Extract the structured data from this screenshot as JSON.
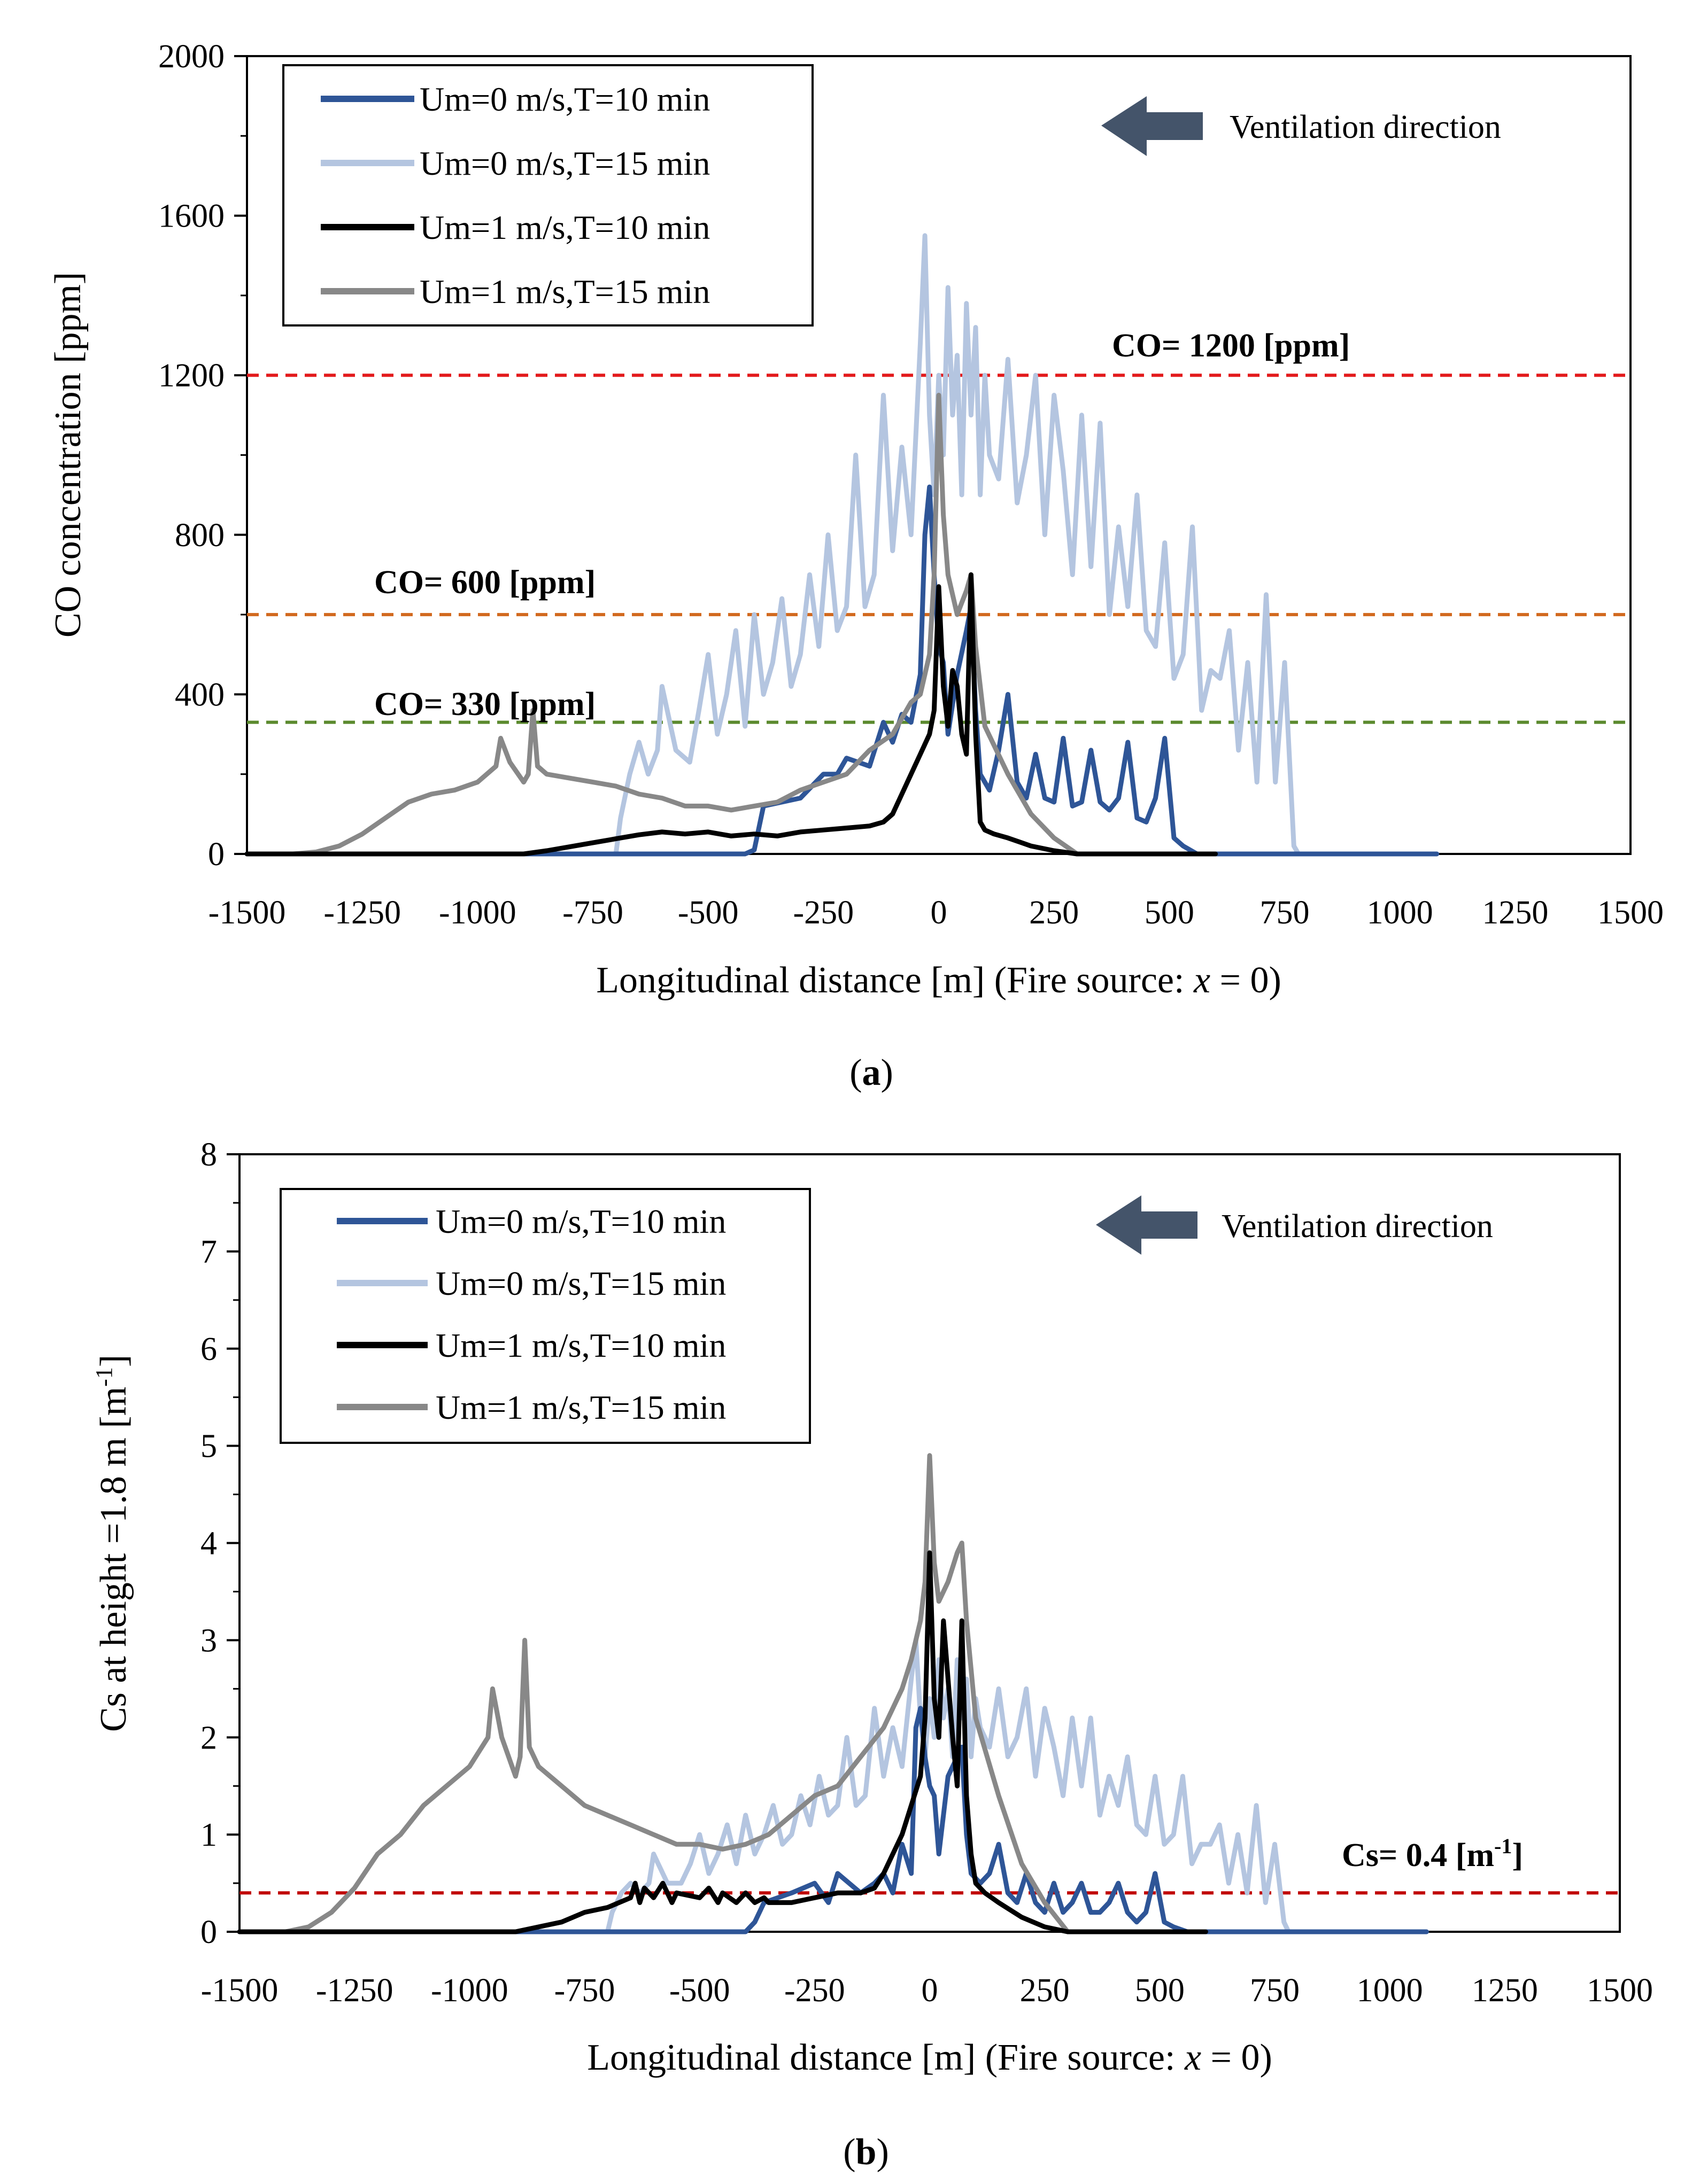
{
  "chart_data": [
    {
      "type": "line",
      "panel_caption": "a",
      "xlabel_main": "Longitudinal distance [m] (Fire source: ",
      "xlabel_var": "x",
      "xlabel_tail": " = 0)",
      "ylabel": "CO concentration [ppm]",
      "xlim": [
        -1500,
        1500
      ],
      "ylim": [
        0,
        2000
      ],
      "x_ticks": [
        "-1500",
        "-1250",
        "-1000",
        "-750",
        "-500",
        "-250",
        "0",
        "250",
        "500",
        "750",
        "1000",
        "1250",
        "1500"
      ],
      "y_ticks": [
        "0",
        "400",
        "800",
        "1200",
        "1600",
        "2000"
      ],
      "annotation": "Ventilation direction",
      "legend_position": "top-left",
      "series": [
        {
          "name": "Um=0 m/s,T=10 min",
          "color": "#2e5597",
          "x": [
            -1500,
            -700,
            -650,
            -600,
            -500,
            -420,
            -400,
            -380,
            -300,
            -250,
            -220,
            -200,
            -150,
            -120,
            -100,
            -80,
            -60,
            -40,
            -30,
            -20,
            -10,
            0,
            10,
            20,
            40,
            60,
            70,
            80,
            90,
            110,
            130,
            150,
            170,
            190,
            210,
            230,
            250,
            270,
            290,
            310,
            330,
            350,
            370,
            390,
            410,
            430,
            450,
            470,
            490,
            510,
            530,
            560,
            600,
            1080
          ],
          "y": [
            0,
            0,
            0,
            0,
            0,
            0,
            10,
            120,
            140,
            200,
            200,
            240,
            220,
            330,
            280,
            350,
            330,
            450,
            800,
            920,
            700,
            520,
            480,
            300,
            450,
            560,
            620,
            360,
            200,
            160,
            260,
            400,
            180,
            140,
            250,
            140,
            130,
            290,
            120,
            130,
            260,
            130,
            110,
            140,
            280,
            90,
            80,
            140,
            290,
            40,
            20,
            0,
            0,
            0
          ]
        },
        {
          "name": "Um=0 m/s,T=15 min",
          "color": "#b4c5e0",
          "x": [
            -700,
            -690,
            -670,
            -650,
            -630,
            -610,
            -600,
            -570,
            -540,
            -520,
            -500,
            -480,
            -460,
            -440,
            -420,
            -400,
            -380,
            -360,
            -340,
            -320,
            -300,
            -280,
            -260,
            -240,
            -220,
            -200,
            -180,
            -160,
            -140,
            -120,
            -100,
            -80,
            -60,
            -40,
            -30,
            -20,
            -10,
            0,
            10,
            20,
            30,
            40,
            50,
            60,
            70,
            80,
            90,
            100,
            110,
            130,
            150,
            170,
            190,
            210,
            230,
            250,
            270,
            290,
            310,
            330,
            350,
            370,
            390,
            410,
            430,
            450,
            470,
            490,
            510,
            530,
            550,
            570,
            590,
            610,
            630,
            650,
            670,
            690,
            710,
            730,
            750,
            770,
            780
          ],
          "y": [
            0,
            90,
            200,
            280,
            200,
            260,
            420,
            260,
            230,
            360,
            500,
            300,
            400,
            560,
            320,
            600,
            400,
            480,
            640,
            420,
            500,
            700,
            520,
            800,
            560,
            620,
            1000,
            620,
            700,
            1150,
            760,
            1020,
            800,
            1280,
            1550,
            1100,
            900,
            1200,
            1000,
            1420,
            1100,
            1250,
            900,
            1380,
            1100,
            1320,
            900,
            1200,
            1000,
            940,
            1240,
            880,
            1000,
            1200,
            800,
            1150,
            960,
            700,
            1100,
            720,
            1080,
            600,
            820,
            620,
            900,
            560,
            520,
            780,
            440,
            500,
            820,
            360,
            460,
            440,
            560,
            260,
            480,
            180,
            650,
            180,
            480,
            20,
            0
          ]
        },
        {
          "name": "Um=1 m/s,T=10 min",
          "color": "#000000",
          "x": [
            -1500,
            -900,
            -850,
            -800,
            -750,
            -700,
            -650,
            -600,
            -550,
            -500,
            -450,
            -400,
            -350,
            -300,
            -250,
            -200,
            -150,
            -120,
            -100,
            -80,
            -60,
            -40,
            -20,
            -10,
            0,
            10,
            20,
            30,
            40,
            50,
            60,
            70,
            80,
            90,
            100,
            120,
            150,
            200,
            250,
            300,
            600
          ],
          "y": [
            0,
            0,
            8,
            18,
            28,
            38,
            48,
            55,
            50,
            55,
            45,
            50,
            45,
            55,
            60,
            65,
            70,
            80,
            100,
            150,
            200,
            250,
            300,
            360,
            670,
            420,
            320,
            460,
            420,
            300,
            250,
            700,
            300,
            80,
            60,
            50,
            40,
            20,
            8,
            0,
            0
          ]
        },
        {
          "name": "Um=1 m/s,T=15 min",
          "color": "#888888",
          "x": [
            -1400,
            -1350,
            -1300,
            -1250,
            -1200,
            -1150,
            -1100,
            -1050,
            -1000,
            -960,
            -950,
            -930,
            -900,
            -890,
            -880,
            -870,
            -850,
            -800,
            -750,
            -700,
            -650,
            -600,
            -550,
            -500,
            -450,
            -400,
            -350,
            -300,
            -250,
            -200,
            -150,
            -100,
            -60,
            -40,
            -20,
            -10,
            0,
            10,
            20,
            40,
            60,
            70,
            80,
            100,
            150,
            200,
            250,
            300
          ],
          "y": [
            0,
            5,
            20,
            50,
            90,
            130,
            150,
            160,
            180,
            220,
            290,
            230,
            180,
            200,
            360,
            220,
            200,
            190,
            180,
            170,
            150,
            140,
            120,
            120,
            110,
            120,
            130,
            160,
            180,
            200,
            260,
            300,
            380,
            400,
            500,
            700,
            1150,
            850,
            700,
            600,
            660,
            700,
            520,
            320,
            200,
            100,
            40,
            0
          ]
        }
      ],
      "thresholds": [
        {
          "label": "CO= 1200 [ppm]",
          "value": 1200,
          "color": "#e31a1c"
        },
        {
          "label": "CO= 600 [ppm]",
          "value": 600,
          "color": "#d2691e"
        },
        {
          "label": "CO= 330 [ppm]",
          "value": 330,
          "color": "#5b8a2e"
        }
      ]
    },
    {
      "type": "line",
      "panel_caption": "b",
      "xlabel_main": "Longitudinal distance [m] (Fire source: ",
      "xlabel_var": "x",
      "xlabel_tail": " = 0)",
      "ylabel_main": "Cs at height =1.8 m [m",
      "ylabel_sup": "-1",
      "ylabel_tail": "]",
      "xlim": [
        -1500,
        1500
      ],
      "ylim": [
        0,
        8
      ],
      "x_ticks": [
        "-1500",
        "-1250",
        "-1000",
        "-750",
        "-500",
        "-250",
        "0",
        "250",
        "500",
        "750",
        "1000",
        "1250",
        "1500"
      ],
      "y_ticks": [
        "0",
        "1",
        "2",
        "3",
        "4",
        "5",
        "6",
        "7",
        "8"
      ],
      "annotation": "Ventilation direction",
      "legend_position": "top-left",
      "series": [
        {
          "name": "Um=0 m/s,T=10 min",
          "color": "#2e5597",
          "x": [
            -1500,
            -700,
            -500,
            -400,
            -380,
            -360,
            -300,
            -250,
            -220,
            -200,
            -150,
            -120,
            -100,
            -80,
            -60,
            -40,
            -30,
            -20,
            -10,
            0,
            10,
            20,
            40,
            60,
            70,
            80,
            90,
            110,
            130,
            150,
            170,
            190,
            210,
            230,
            250,
            270,
            290,
            310,
            330,
            350,
            370,
            390,
            410,
            430,
            450,
            470,
            490,
            510,
            530,
            560,
            600,
            1080
          ],
          "y": [
            0,
            0,
            0,
            0,
            0.1,
            0.3,
            0.4,
            0.5,
            0.3,
            0.6,
            0.4,
            0.5,
            0.6,
            0.4,
            0.9,
            0.6,
            2.1,
            2.3,
            1.8,
            1.5,
            1.4,
            0.8,
            1.6,
            1.8,
            1.9,
            1.0,
            0.6,
            0.5,
            0.6,
            0.9,
            0.4,
            0.3,
            0.6,
            0.3,
            0.2,
            0.5,
            0.2,
            0.3,
            0.5,
            0.2,
            0.2,
            0.3,
            0.5,
            0.2,
            0.1,
            0.2,
            0.6,
            0.1,
            0.05,
            0,
            0,
            0
          ]
        },
        {
          "name": "Um=0 m/s,T=15 min",
          "color": "#b4c5e0",
          "x": [
            -700,
            -690,
            -670,
            -650,
            -630,
            -610,
            -600,
            -570,
            -540,
            -520,
            -500,
            -480,
            -460,
            -440,
            -420,
            -400,
            -380,
            -360,
            -340,
            -320,
            -300,
            -280,
            -260,
            -240,
            -220,
            -200,
            -180,
            -160,
            -140,
            -120,
            -100,
            -80,
            -60,
            -40,
            -30,
            -20,
            -10,
            0,
            10,
            20,
            30,
            40,
            50,
            60,
            70,
            80,
            90,
            100,
            110,
            130,
            150,
            170,
            190,
            210,
            230,
            250,
            270,
            290,
            310,
            330,
            350,
            370,
            390,
            410,
            430,
            450,
            470,
            490,
            510,
            530,
            550,
            570,
            590,
            610,
            630,
            650,
            670,
            690,
            710,
            730,
            750,
            770,
            780
          ],
          "y": [
            0,
            0.2,
            0.4,
            0.5,
            0.4,
            0.5,
            0.8,
            0.5,
            0.5,
            0.7,
            1.0,
            0.6,
            0.8,
            1.1,
            0.7,
            1.2,
            0.8,
            1.0,
            1.3,
            0.9,
            1.0,
            1.4,
            1.1,
            1.6,
            1.2,
            1.3,
            2.0,
            1.3,
            1.4,
            2.3,
            1.6,
            2.1,
            1.7,
            2.6,
            3.0,
            2.2,
            1.8,
            2.4,
            2.0,
            2.8,
            2.2,
            2.5,
            1.8,
            2.8,
            2.2,
            2.6,
            1.8,
            2.4,
            2.1,
            1.9,
            2.5,
            1.8,
            2.0,
            2.5,
            1.6,
            2.3,
            1.9,
            1.4,
            2.2,
            1.5,
            2.2,
            1.2,
            1.6,
            1.3,
            1.8,
            1.1,
            1.0,
            1.6,
            0.9,
            1.0,
            1.6,
            0.7,
            0.9,
            0.9,
            1.1,
            0.5,
            1.0,
            0.4,
            1.3,
            0.3,
            0.9,
            0.1,
            0
          ]
        },
        {
          "name": "Um=1 m/s,T=10 min",
          "color": "#000000",
          "x": [
            -1500,
            -900,
            -850,
            -800,
            -750,
            -700,
            -650,
            -640,
            -630,
            -620,
            -600,
            -580,
            -560,
            -550,
            -500,
            -480,
            -460,
            -450,
            -420,
            -400,
            -380,
            -360,
            -350,
            -300,
            -250,
            -200,
            -150,
            -120,
            -100,
            -80,
            -60,
            -40,
            -20,
            -10,
            0,
            10,
            20,
            30,
            40,
            50,
            60,
            70,
            80,
            90,
            100,
            120,
            150,
            200,
            250,
            300,
            600
          ],
          "y": [
            0,
            0,
            0.05,
            0.1,
            0.2,
            0.25,
            0.35,
            0.5,
            0.3,
            0.45,
            0.35,
            0.5,
            0.3,
            0.4,
            0.35,
            0.45,
            0.3,
            0.4,
            0.3,
            0.4,
            0.3,
            0.35,
            0.3,
            0.3,
            0.35,
            0.4,
            0.4,
            0.45,
            0.6,
            0.8,
            1.0,
            1.3,
            1.6,
            2.2,
            3.9,
            2.4,
            2.0,
            3.2,
            2.6,
            2.0,
            1.5,
            3.2,
            1.4,
            0.8,
            0.5,
            0.4,
            0.3,
            0.15,
            0.05,
            0,
            0
          ]
        },
        {
          "name": "Um=1 m/s,T=15 min",
          "color": "#888888",
          "x": [
            -1400,
            -1350,
            -1300,
            -1250,
            -1200,
            -1150,
            -1100,
            -1050,
            -1000,
            -960,
            -950,
            -930,
            -900,
            -890,
            -880,
            -870,
            -850,
            -800,
            -750,
            -700,
            -650,
            -600,
            -550,
            -500,
            -450,
            -400,
            -350,
            -300,
            -250,
            -200,
            -150,
            -100,
            -60,
            -40,
            -20,
            -10,
            0,
            10,
            20,
            40,
            60,
            70,
            80,
            100,
            150,
            200,
            250,
            300
          ],
          "y": [
            0,
            0.05,
            0.2,
            0.45,
            0.8,
            1.0,
            1.3,
            1.5,
            1.7,
            2.0,
            2.5,
            2.0,
            1.6,
            1.8,
            3.0,
            1.9,
            1.7,
            1.5,
            1.3,
            1.2,
            1.1,
            1.0,
            0.9,
            0.9,
            0.85,
            0.9,
            1.0,
            1.2,
            1.4,
            1.5,
            1.8,
            2.1,
            2.5,
            2.8,
            3.2,
            3.6,
            4.9,
            3.8,
            3.4,
            3.6,
            3.9,
            4.0,
            3.2,
            2.2,
            1.4,
            0.7,
            0.3,
            0
          ]
        }
      ],
      "thresholds": [
        {
          "label_main": "Cs= 0.4 [m",
          "label_sup": "-1",
          "label_tail": "]",
          "value": 0.4,
          "color": "#c00000"
        }
      ]
    }
  ]
}
